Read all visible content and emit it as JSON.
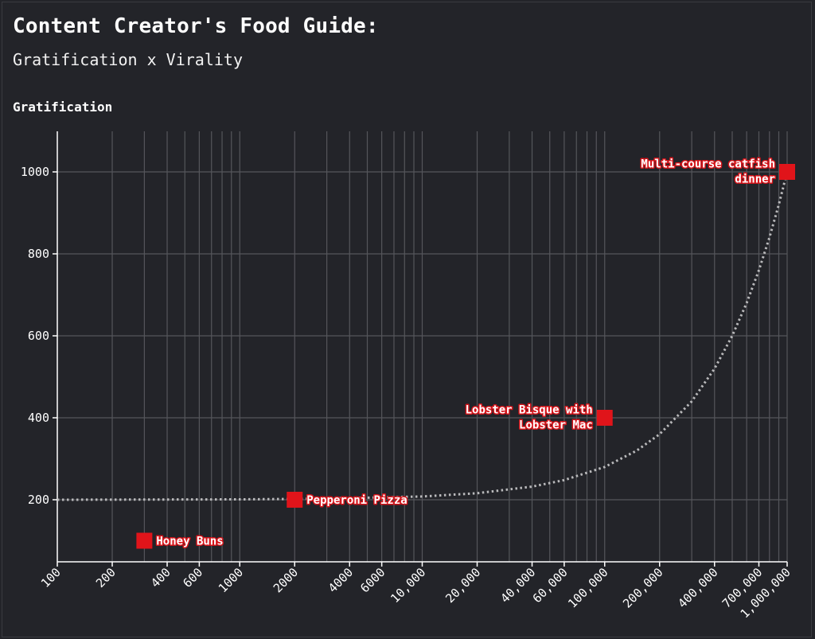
{
  "title": "Content Creator's Food Guide:",
  "subtitle": "Gratification x Virality",
  "chart_data": {
    "type": "scatter",
    "title": "Content Creator's Food Guide:",
    "subtitle": "Gratification x Virality",
    "ylabel": "Gratification",
    "xlabel": "",
    "x_scale": "log",
    "xlim": [
      100,
      1000000
    ],
    "ylim": [
      50,
      1100
    ],
    "grid": true,
    "legend": "none",
    "point_color": "#e0141a",
    "x_ticks": [
      {
        "value": 100,
        "label": "100"
      },
      {
        "value": 200,
        "label": "200"
      },
      {
        "value": 400,
        "label": "400"
      },
      {
        "value": 600,
        "label": "600"
      },
      {
        "value": 1000,
        "label": "1000"
      },
      {
        "value": 2000,
        "label": "2000"
      },
      {
        "value": 4000,
        "label": "4000"
      },
      {
        "value": 6000,
        "label": "6000"
      },
      {
        "value": 10000,
        "label": "10,000"
      },
      {
        "value": 20000,
        "label": "20,000"
      },
      {
        "value": 40000,
        "label": "40,000"
      },
      {
        "value": 60000,
        "label": "60,000"
      },
      {
        "value": 100000,
        "label": "100,000"
      },
      {
        "value": 200000,
        "label": "200,000"
      },
      {
        "value": 400000,
        "label": "400,000"
      },
      {
        "value": 700000,
        "label": "700,000"
      },
      {
        "value": 1000000,
        "label": "1,000,000"
      }
    ],
    "x_minor_gridlines": [
      300,
      500,
      700,
      800,
      900,
      3000,
      5000,
      7000,
      8000,
      9000,
      30000,
      50000,
      70000,
      80000,
      90000,
      300000,
      500000,
      600000,
      800000,
      900000
    ],
    "y_ticks": [
      200,
      400,
      600,
      800,
      1000
    ],
    "points": [
      {
        "x": 300,
        "y": 100,
        "label": [
          "Honey Buns"
        ],
        "label_side": "right"
      },
      {
        "x": 2000,
        "y": 200,
        "label": [
          "Pepperoni Pizza"
        ],
        "label_side": "right"
      },
      {
        "x": 100000,
        "y": 400,
        "label": [
          "Lobster Bisque with",
          "Lobster Mac"
        ],
        "label_side": "left"
      },
      {
        "x": 1000000,
        "y": 1000,
        "label": [
          "Multi-course catfish",
          "dinner"
        ],
        "label_side": "left"
      }
    ],
    "trend_curve": {
      "style": "dotted",
      "color": "#b9b9bb",
      "points": [
        [
          100,
          200
        ],
        [
          1000,
          201
        ],
        [
          2000,
          202
        ],
        [
          5000,
          205
        ],
        [
          10000,
          208
        ],
        [
          20000,
          216
        ],
        [
          40000,
          232
        ],
        [
          60000,
          248
        ],
        [
          100000,
          280
        ],
        [
          150000,
          320
        ],
        [
          200000,
          360
        ],
        [
          300000,
          440
        ],
        [
          400000,
          520
        ],
        [
          500000,
          600
        ],
        [
          600000,
          680
        ],
        [
          700000,
          760
        ],
        [
          800000,
          840
        ],
        [
          900000,
          920
        ],
        [
          1000000,
          1000
        ]
      ]
    }
  }
}
